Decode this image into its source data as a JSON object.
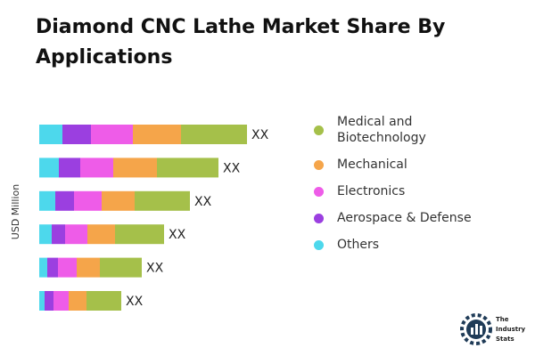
{
  "chart_data": {
    "type": "stacked-bar-horizontal",
    "title": "Diamond CNC Lathe Market Share By Applications",
    "y_axis_label": "USD Million",
    "categories": [
      null,
      null,
      null,
      null,
      null,
      null
    ],
    "series": [
      {
        "name": "Others",
        "color": "#4dd8ec",
        "values": [
          26,
          22,
          18,
          14,
          9,
          6
        ]
      },
      {
        "name": "Aerospace & Defense",
        "color": "#9b3fe0",
        "values": [
          32,
          24,
          21,
          15,
          12,
          10
        ]
      },
      {
        "name": "Electronics",
        "color": "#ee5ce8",
        "values": [
          47,
          37,
          31,
          25,
          21,
          17
        ]
      },
      {
        "name": "Mechanical",
        "color": "#f5a54a",
        "values": [
          54,
          49,
          37,
          31,
          26,
          20
        ]
      },
      {
        "name": "Medical and Biotechnology",
        "color": "#a5c04a",
        "values": [
          74,
          69,
          62,
          55,
          47,
          39
        ]
      }
    ],
    "bar_labels": [
      "XX",
      "XX",
      "XX",
      "XX",
      "XX",
      "XX"
    ]
  },
  "logo_text": "The Industry Stats"
}
